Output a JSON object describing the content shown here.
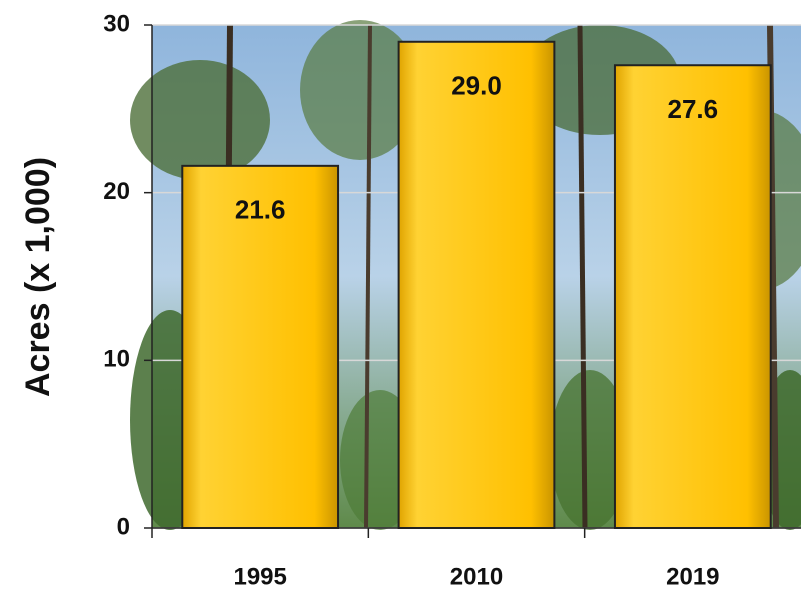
{
  "chart_data": {
    "type": "bar",
    "ylabel": "Acres (x 1,000)",
    "categories": [
      "1995",
      "2010",
      "2019"
    ],
    "values": [
      21.6,
      29.0,
      27.6
    ],
    "value_labels": [
      "21.6",
      "29.0",
      "27.6"
    ],
    "color": "#ffc000",
    "ylim": [
      0,
      30
    ],
    "yticks": [
      0,
      10,
      20,
      30
    ],
    "grid": true
  }
}
